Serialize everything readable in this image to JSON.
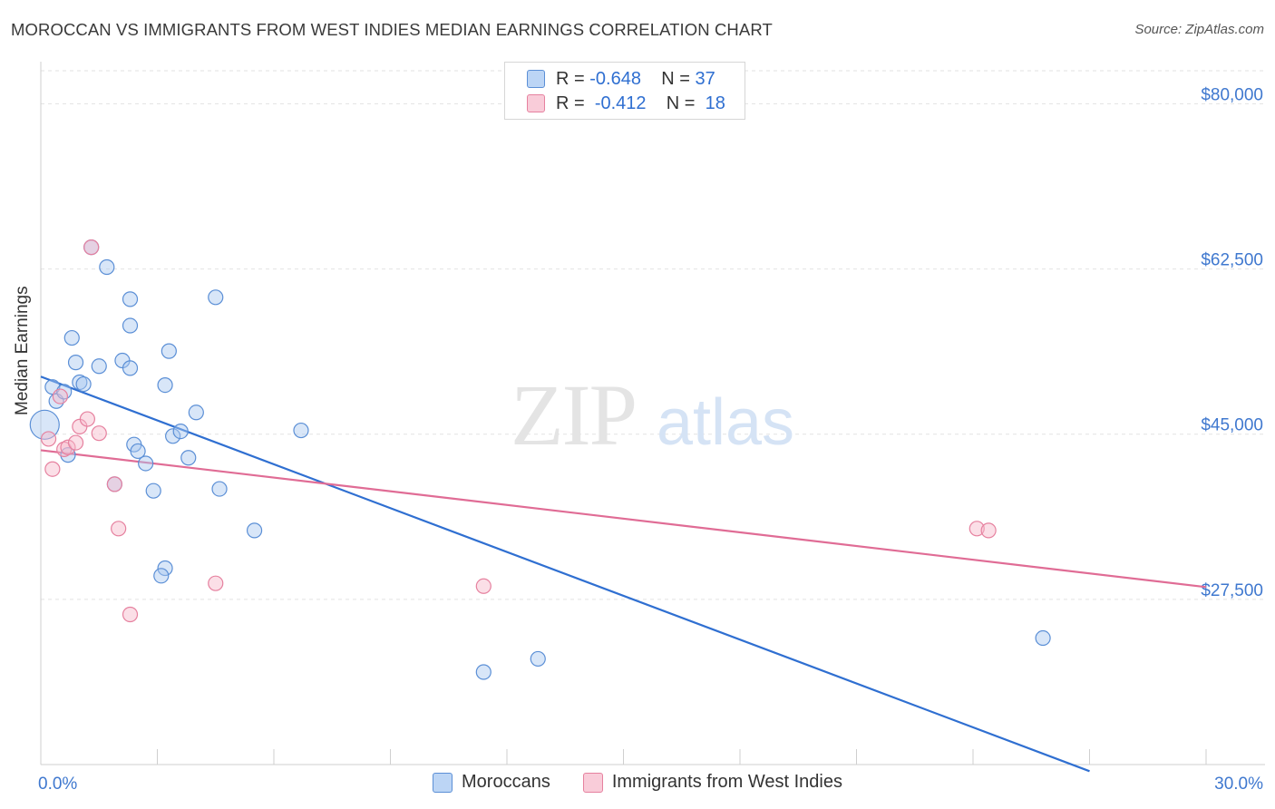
{
  "header": {
    "title": "MOROCCAN VS IMMIGRANTS FROM WEST INDIES MEDIAN EARNINGS CORRELATION CHART",
    "source": "Source: ZipAtlas.com"
  },
  "watermark": {
    "zip": "ZIP",
    "atlas": "atlas"
  },
  "legend": {
    "rows": [
      {
        "r_label": "R =",
        "r_value": "-0.648",
        "n_label": "N =",
        "n_value": "37"
      },
      {
        "r_label": "R =",
        "r_value": "-0.412",
        "n_label": "N =",
        "n_value": "18"
      }
    ]
  },
  "colors": {
    "blue_fill": "#a9c8f0",
    "blue_stroke": "#5b8fd6",
    "blue_line": "#2f6fd1",
    "pink_fill": "#f6b8ca",
    "pink_stroke": "#e6819f",
    "pink_line": "#e06c95",
    "axis_label": "#3f78cf",
    "grid": "#e2e2e2"
  },
  "chart_data": {
    "type": "scatter",
    "title": "MOROCCAN VS IMMIGRANTS FROM WEST INDIES MEDIAN EARNINGS CORRELATION CHART",
    "xlabel": "",
    "ylabel": "Median Earnings",
    "xlim": [
      0,
      30
    ],
    "ylim": [
      10000,
      83500
    ],
    "x_tick_labels": [
      "0.0%",
      "30.0%"
    ],
    "y_ticks": [
      {
        "value": 27500,
        "label": "$27,500"
      },
      {
        "value": 45000,
        "label": "$45,000"
      },
      {
        "value": 62500,
        "label": "$62,500"
      },
      {
        "value": 80000,
        "label": "$80,000"
      }
    ],
    "series": [
      {
        "name": "Moroccans",
        "color": "#5b8fd6",
        "points": [
          [
            0.1,
            46000,
            16
          ],
          [
            0.3,
            50000,
            8
          ],
          [
            0.4,
            48500,
            8
          ],
          [
            0.6,
            49500,
            8
          ],
          [
            0.7,
            42800,
            8
          ],
          [
            0.8,
            55200,
            8
          ],
          [
            0.9,
            52600,
            8
          ],
          [
            1.0,
            50500,
            8
          ],
          [
            1.1,
            50300,
            8
          ],
          [
            1.3,
            64800,
            8
          ],
          [
            1.5,
            52200,
            8
          ],
          [
            1.7,
            62700,
            8
          ],
          [
            1.9,
            39700,
            8
          ],
          [
            2.1,
            52800,
            8
          ],
          [
            2.3,
            56500,
            8
          ],
          [
            2.3,
            59300,
            8
          ],
          [
            2.3,
            52000,
            8
          ],
          [
            2.4,
            43900,
            8
          ],
          [
            2.5,
            43200,
            8
          ],
          [
            2.7,
            41900,
            8
          ],
          [
            2.9,
            39000,
            8
          ],
          [
            3.2,
            30800,
            8
          ],
          [
            3.1,
            30000,
            8
          ],
          [
            3.2,
            50200,
            8
          ],
          [
            3.3,
            53800,
            8
          ],
          [
            3.4,
            44800,
            8
          ],
          [
            3.6,
            45300,
            8
          ],
          [
            3.8,
            42500,
            8
          ],
          [
            4.0,
            47300,
            8
          ],
          [
            4.5,
            59500,
            8
          ],
          [
            4.6,
            39200,
            8
          ],
          [
            5.5,
            34800,
            8
          ],
          [
            6.7,
            45400,
            8
          ],
          [
            11.4,
            19800,
            8
          ],
          [
            12.8,
            21200,
            8
          ],
          [
            25.8,
            23400,
            8
          ]
        ],
        "trend": {
          "x": [
            0,
            27
          ],
          "y": [
            51100,
            9300
          ]
        }
      },
      {
        "name": "Immigrants from West Indies",
        "color": "#e6819f",
        "points": [
          [
            0.2,
            44500,
            8
          ],
          [
            0.3,
            41300,
            8
          ],
          [
            0.5,
            49000,
            8
          ],
          [
            0.6,
            43400,
            8
          ],
          [
            0.7,
            43600,
            8
          ],
          [
            0.9,
            44100,
            8
          ],
          [
            1.0,
            45800,
            8
          ],
          [
            1.2,
            46600,
            8
          ],
          [
            1.3,
            64800,
            8
          ],
          [
            1.5,
            45100,
            8
          ],
          [
            1.9,
            39700,
            8
          ],
          [
            2.0,
            35000,
            8
          ],
          [
            2.3,
            25900,
            8
          ],
          [
            4.5,
            29200,
            8
          ],
          [
            11.4,
            28900,
            8
          ],
          [
            24.1,
            35000,
            8
          ],
          [
            24.4,
            34800,
            8
          ]
        ],
        "trend": {
          "x": [
            0,
            30
          ],
          "y": [
            43300,
            28800
          ]
        }
      }
    ],
    "legend_position": "top-center"
  },
  "bottom_legend": {
    "items": [
      {
        "label": "Moroccans"
      },
      {
        "label": "Immigrants from West Indies"
      }
    ]
  }
}
